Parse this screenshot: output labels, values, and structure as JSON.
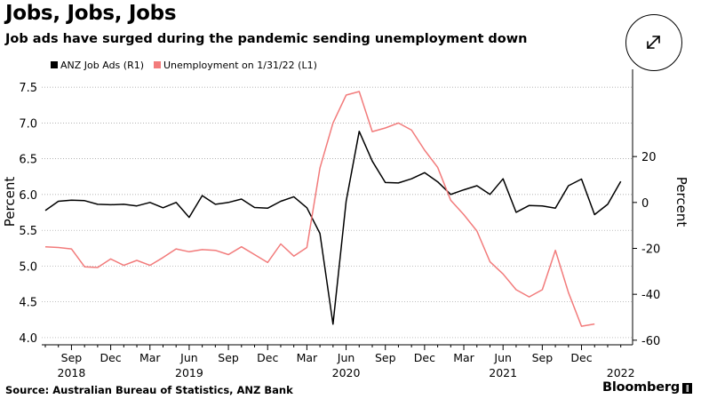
{
  "header": {
    "title": "Jobs, Jobs, Jobs",
    "subtitle": "Job ads have surged during the pandemic sending unemployment down"
  },
  "expand_button": {
    "icon": "expand-arrows-icon"
  },
  "footer": {
    "source": "Source: Australian Bureau of Statistics, ANZ Bank",
    "brand": "Bloomberg",
    "brand_mark": "‖"
  },
  "colors": {
    "job_ads": "#000000",
    "unemployment": "#f27b7b",
    "axis": "#000000"
  },
  "chart_data": {
    "type": "line",
    "title": "Jobs, Jobs, Jobs",
    "subtitle": "Job ads have surged during the pandemic sending unemployment down",
    "ylabel_left": "Percent",
    "ylabel_right": "Percent",
    "ylim_left": [
      3.9,
      7.75
    ],
    "ylim_right": [
      -62,
      58
    ],
    "yticks_left": [
      "4.0",
      "4.5",
      "5.0",
      "5.5",
      "6.0",
      "6.5",
      "7.0",
      "7.5"
    ],
    "yticks_right": [
      "-60",
      "-40",
      "-20",
      "0",
      "20"
    ],
    "x_month_labels": [
      "Sep",
      "Dec",
      "Mar",
      "Jun",
      "Sep",
      "Dec",
      "Mar",
      "Jun",
      "Sep",
      "Dec",
      "Mar",
      "Jun",
      "Sep",
      "Dec"
    ],
    "x_month_label_index": [
      2,
      5,
      8,
      11,
      14,
      17,
      20,
      23,
      26,
      29,
      32,
      35,
      38,
      41
    ],
    "x_year_labels": [
      "2018",
      "2019",
      "2020",
      "2021",
      "2022"
    ],
    "x_year_label_index": [
      2,
      11,
      23,
      35,
      44
    ],
    "month_index_range": [
      0,
      44
    ],
    "legend": [
      {
        "name": "ANZ Job Ads (R1)",
        "axis": "right"
      },
      {
        "name": "Unemployment on 1/31/22 (L1)",
        "axis": "left"
      }
    ],
    "series": [
      {
        "name": "ANZ Job Ads (R1)",
        "axis": "right",
        "start_index": 0,
        "values": [
          -3.5,
          0.5,
          1.0,
          0.8,
          -0.8,
          -1.0,
          -0.8,
          -1.5,
          0.0,
          -2.3,
          0.0,
          -6.5,
          3.0,
          -0.8,
          0.0,
          1.5,
          -2.2,
          -2.5,
          0.5,
          2.5,
          -2.3,
          -13.5,
          -53.0,
          0.5,
          31.0,
          18.0,
          8.7,
          8.5,
          10.3,
          13.0,
          9.0,
          3.5,
          5.5,
          7.3,
          3.5,
          10.3,
          -4.3,
          -1.3,
          -1.5,
          -2.5,
          7.3,
          10.2,
          -5.3,
          -0.8,
          9.2
        ]
      },
      {
        "name": "Unemployment on 1/31/22",
        "axis": "left",
        "start_index": 0,
        "values": [
          5.27,
          5.26,
          5.24,
          4.99,
          4.98,
          5.1,
          5.01,
          5.08,
          5.01,
          5.12,
          5.24,
          5.2,
          5.23,
          5.22,
          5.16,
          5.27,
          5.16,
          5.05,
          5.31,
          5.14,
          5.26,
          6.37,
          7.0,
          7.39,
          7.44,
          6.88,
          6.93,
          7.0,
          6.9,
          6.62,
          6.38,
          5.92,
          5.72,
          5.49,
          5.06,
          4.89,
          4.67,
          4.57,
          4.67,
          5.22,
          4.63,
          4.16,
          4.19
        ]
      }
    ]
  }
}
